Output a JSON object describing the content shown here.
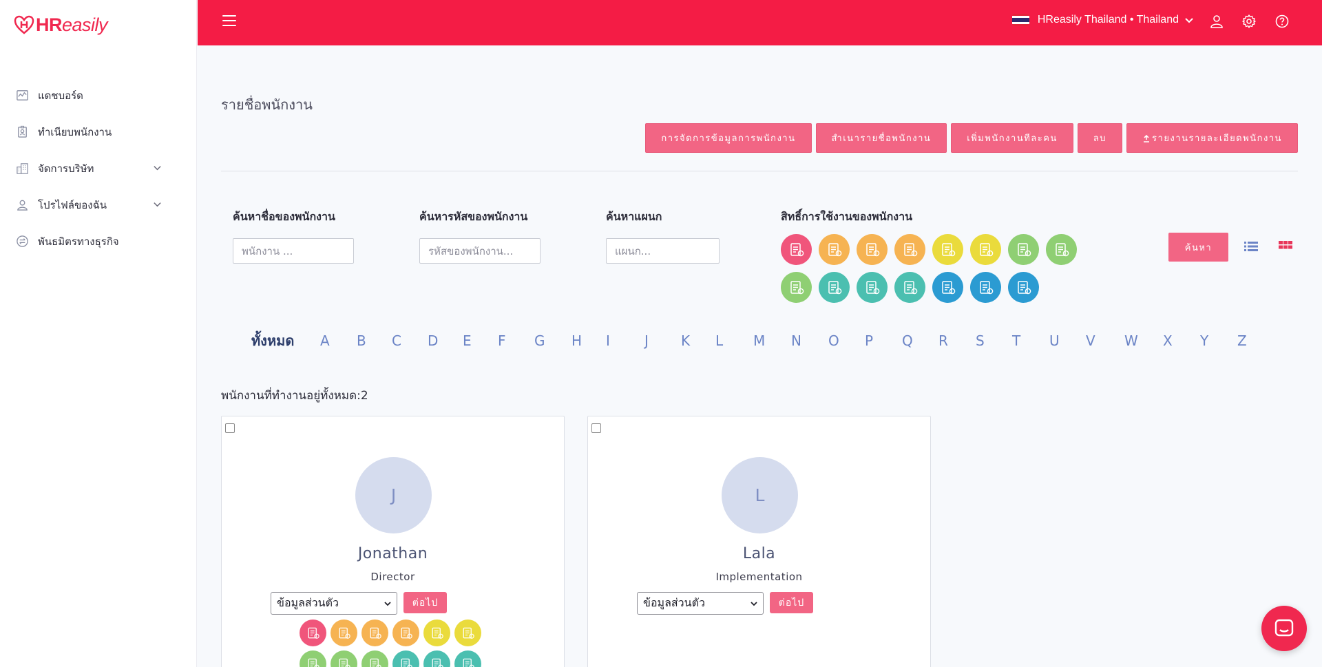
{
  "brand": {
    "name_bold": "HR",
    "name_light": "easily",
    "color": "#f41c45"
  },
  "sidebar": {
    "items": [
      {
        "label": "แดชบอร์ด",
        "icon": "chart-icon",
        "has_children": false
      },
      {
        "label": "ทำเนียบพนักงาน",
        "icon": "badge-icon",
        "has_children": false
      },
      {
        "label": "จัดการบริษัท",
        "icon": "building-icon",
        "has_children": true
      },
      {
        "label": "โปรไฟล์ของฉัน",
        "icon": "user-icon",
        "has_children": true
      },
      {
        "label": "พันธมิตรทางธุรกิจ",
        "icon": "partner-icon",
        "has_children": false
      }
    ]
  },
  "topbar": {
    "company": "HReasily Thailand • Thailand"
  },
  "page": {
    "title": "รายชื่อพนักงาน",
    "actions": [
      "การจัดการข้อมูลการพนักงาน",
      "สำเนารายชื่อพนักงาน",
      "เพิ่มพนักงานทีละคน",
      "ลบ",
      "รายงานรายละเอียดพนักงาน"
    ]
  },
  "filters": {
    "name": {
      "label": "ค้นหาชื่อของพนักงาน",
      "placeholder": "พนักงาน ..."
    },
    "code": {
      "label": "ค้นหารหัสของพนักงาน",
      "placeholder": "รหัสของพนักงาน..."
    },
    "dept": {
      "label": "ค้นหาแผนก",
      "placeholder": "แผนก..."
    },
    "perms": {
      "label": "สิทธิ์การใช้งานของพนักงาน"
    },
    "search_label": "ค้นหา"
  },
  "permission_colors": [
    "#f0557b",
    "#f6b352",
    "#f6b352",
    "#f6b352",
    "#eadb3c",
    "#eadb3c",
    "#8fcf73",
    "#8fcf73",
    "#8fcf73",
    "#4bbfb0",
    "#4bbfb0",
    "#4bbfb0",
    "#2b9bd2",
    "#2b9bd2",
    "#2b9bd2"
  ],
  "alphabet": [
    "ทั้งหมด",
    "A",
    "B",
    "C",
    "D",
    "E",
    "F",
    "G",
    "H",
    "I",
    "J",
    "K",
    "L",
    "M",
    "N",
    "O",
    "P",
    "Q",
    "R",
    "S",
    "T",
    "U",
    "V",
    "W",
    "X",
    "Y",
    "Z"
  ],
  "employees": {
    "count_text": "พนักงานที่ทำงานอยู่ทั้งหมด:2",
    "list": [
      {
        "initial": "J",
        "name": "Jonathan",
        "role": "Director",
        "select_value": "ข้อมูลส่วนตัว",
        "next_label": "ต่อไป"
      },
      {
        "initial": "L",
        "name": "Lala",
        "role": "Implementation",
        "select_value": "ข้อมูลส่วนตัว",
        "next_label": "ต่อไป"
      }
    ]
  }
}
